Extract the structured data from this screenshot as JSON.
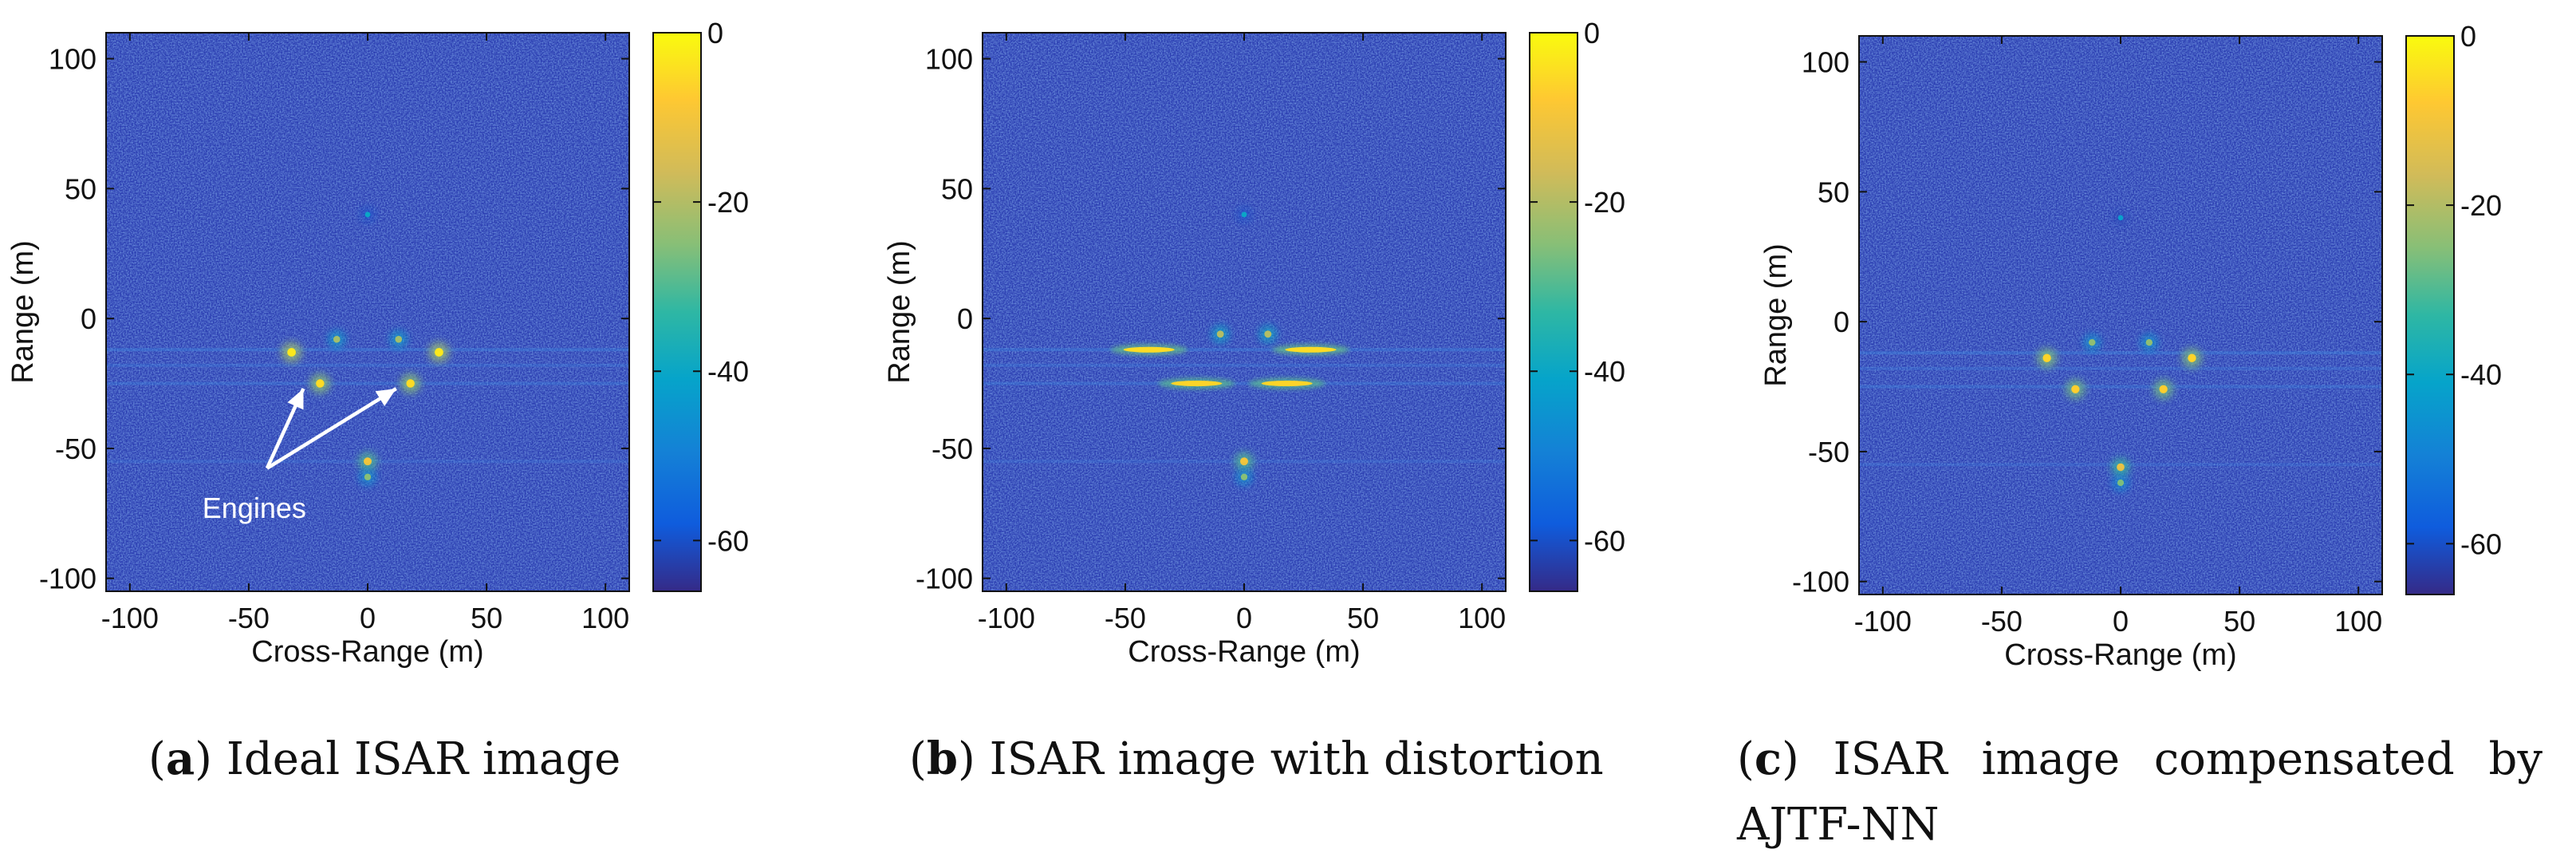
{
  "chart_data": [
    {
      "type": "heatmap",
      "panel": "a",
      "caption_label": "a",
      "caption_text": "Ideal ISAR image",
      "xlabel": "Cross-Range (m)",
      "ylabel": "Range (m)",
      "xlim": [
        -110,
        110
      ],
      "ylim": [
        -105,
        110
      ],
      "xticks": [
        -100,
        -50,
        0,
        50,
        100
      ],
      "yticks": [
        100,
        50,
        0,
        -50,
        -100
      ],
      "colorbar": {
        "ticks": [
          0,
          -20,
          -40,
          -60
        ],
        "range": [
          -66,
          0
        ],
        "colormap": "parula"
      },
      "annotation": {
        "text": "Engines",
        "targets_x_y": [
          [
            -27,
            -27
          ],
          [
            12,
            -27
          ]
        ],
        "label_x_y": [
          -47,
          -73
        ]
      },
      "scatterers": [
        {
          "x": -32,
          "y": -13,
          "db": -3
        },
        {
          "x": -20,
          "y": -25,
          "db": -5
        },
        {
          "x": 18,
          "y": -25,
          "db": -5
        },
        {
          "x": 30,
          "y": -13,
          "db": -3
        },
        {
          "x": -13,
          "y": -8,
          "db": -22
        },
        {
          "x": 13,
          "y": -8,
          "db": -22
        },
        {
          "x": 0,
          "y": -55,
          "db": -10
        },
        {
          "x": 0,
          "y": -61,
          "db": -25
        },
        {
          "x": 0,
          "y": 40,
          "db": -40
        }
      ]
    },
    {
      "type": "heatmap",
      "panel": "b",
      "caption_label": "b",
      "caption_text": "ISAR image with distortion",
      "xlabel": "Cross-Range (m)",
      "ylabel": "Range (m)",
      "xlim": [
        -110,
        110
      ],
      "ylim": [
        -105,
        110
      ],
      "xticks": [
        -100,
        -50,
        0,
        50,
        100
      ],
      "yticks": [
        100,
        50,
        0,
        -50,
        -100
      ],
      "colorbar": {
        "ticks": [
          0,
          -20,
          -40,
          -60
        ],
        "range": [
          -66,
          0
        ],
        "colormap": "parula"
      },
      "scatterers": [
        {
          "x": -40,
          "y": -12,
          "db": -5
        },
        {
          "x": -20,
          "y": -25,
          "db": -6
        },
        {
          "x": 18,
          "y": -25,
          "db": -6
        },
        {
          "x": 28,
          "y": -12,
          "db": -5
        },
        {
          "x": -10,
          "y": -6,
          "db": -20
        },
        {
          "x": 10,
          "y": -6,
          "db": -20
        },
        {
          "x": 0,
          "y": -55,
          "db": -10
        },
        {
          "x": 0,
          "y": -61,
          "db": -25
        },
        {
          "x": 0,
          "y": 40,
          "db": -40
        }
      ]
    },
    {
      "type": "heatmap",
      "panel": "c",
      "caption_label": "c",
      "caption_text": "ISAR image compensated by AJTF-NN",
      "xlabel": "Cross-Range (m)",
      "ylabel": "Range (m)",
      "xlim": [
        -110,
        110
      ],
      "ylim": [
        -105,
        110
      ],
      "xticks": [
        -100,
        -50,
        0,
        50,
        100
      ],
      "yticks": [
        100,
        50,
        0,
        -50,
        -100
      ],
      "colorbar": {
        "ticks": [
          0,
          -20,
          -40,
          -60
        ],
        "range": [
          -66,
          0
        ],
        "colormap": "parula"
      },
      "scatterers": [
        {
          "x": -31,
          "y": -14,
          "db": -6
        },
        {
          "x": -19,
          "y": -26,
          "db": -7
        },
        {
          "x": 18,
          "y": -26,
          "db": -7
        },
        {
          "x": 30,
          "y": -14,
          "db": -6
        },
        {
          "x": -12,
          "y": -8,
          "db": -24
        },
        {
          "x": 12,
          "y": -8,
          "db": -24
        },
        {
          "x": 0,
          "y": -56,
          "db": -12
        },
        {
          "x": 0,
          "y": -62,
          "db": -26
        },
        {
          "x": 0,
          "y": 40,
          "db": -42
        }
      ]
    }
  ]
}
